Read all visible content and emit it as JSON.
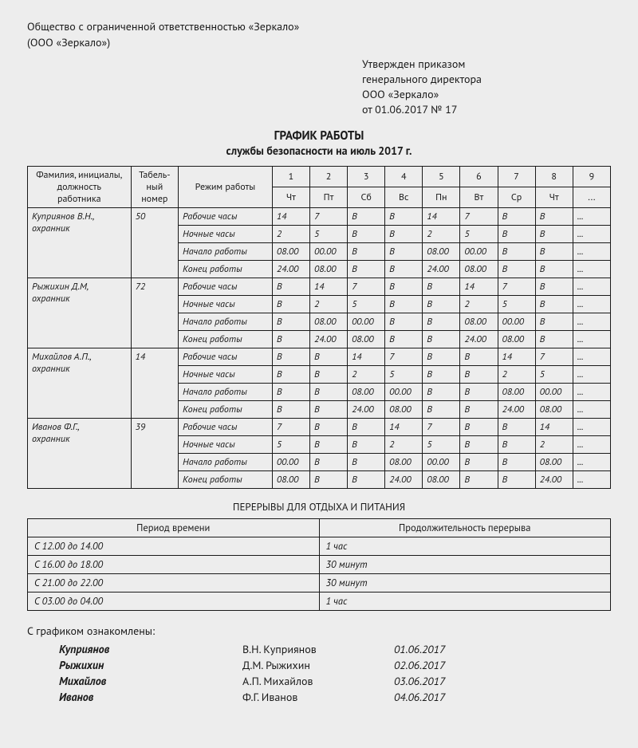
{
  "org": {
    "lines": [
      "Общество с ограниченной ответственностью «Зеркало»",
      "(ООО «Зеркало»)"
    ]
  },
  "approval": {
    "lines": [
      "Утвержден приказом",
      "генерального директора",
      "ООО «Зеркало»",
      "от 01.06.2017 № 17"
    ]
  },
  "title": {
    "main": "ГРАФИК РАБОТЫ",
    "sub": "службы безопасности на июль 2017 г."
  },
  "schedule": {
    "headers": {
      "employee": "Фамилия, инициалы,\nдолжность\nработника",
      "tabnum": "Табель-\nный\nномер",
      "mode": "Режим работы",
      "day_nums": [
        "1",
        "2",
        "3",
        "4",
        "5",
        "6",
        "7",
        "8",
        "9"
      ],
      "day_dow": [
        "Чт",
        "Пт",
        "Сб",
        "Вс",
        "Пн",
        "Вт",
        "Ср",
        "Чт",
        "..."
      ]
    },
    "row_labels": [
      "Рабочие часы",
      "Ночные часы",
      "Начало работы",
      "Конец работы"
    ],
    "employees": [
      {
        "name": "Куприянов В.Н.,\nохранник",
        "tab": "50",
        "rows": [
          [
            "14",
            "7",
            "В",
            "В",
            "14",
            "7",
            "В",
            "В",
            "..."
          ],
          [
            "2",
            "5",
            "В",
            "В",
            "2",
            "5",
            "В",
            "В",
            "..."
          ],
          [
            "08.00",
            "00.00",
            "В",
            "В",
            "08.00",
            "00.00",
            "В",
            "В",
            "..."
          ],
          [
            "24.00",
            "08.00",
            "В",
            "В",
            "24.00",
            "08.00",
            "В",
            "В",
            "..."
          ]
        ]
      },
      {
        "name": "Рыжихин Д.М,\nохранник",
        "tab": "72",
        "rows": [
          [
            "В",
            "14",
            "7",
            "В",
            "В",
            "14",
            "7",
            "В",
            "..."
          ],
          [
            "В",
            "2",
            "5",
            "В",
            "В",
            "2",
            "5",
            "В",
            "..."
          ],
          [
            "В",
            "08.00",
            "00.00",
            "В",
            "В",
            "08.00",
            "00.00",
            "В",
            "..."
          ],
          [
            "В",
            "24.00",
            "08.00",
            "В",
            "В",
            "24.00",
            "08.00",
            "В",
            "..."
          ]
        ]
      },
      {
        "name": "Михайлов А.П.,\nохранник",
        "tab": "14",
        "rows": [
          [
            "В",
            "В",
            "14",
            "7",
            "В",
            "В",
            "14",
            "7",
            "..."
          ],
          [
            "В",
            "В",
            "2",
            "5",
            "В",
            "В",
            "2",
            "5",
            "..."
          ],
          [
            "В",
            "В",
            "08.00",
            "00.00",
            "В",
            "В",
            "08.00",
            "00.00",
            "..."
          ],
          [
            "В",
            "В",
            "24.00",
            "08.00",
            "В",
            "В",
            "24.00",
            "08.00",
            "..."
          ]
        ]
      },
      {
        "name": "Иванов Ф.Г.,\nохранник",
        "tab": "39",
        "rows": [
          [
            "7",
            "В",
            "В",
            "14",
            "7",
            "В",
            "В",
            "14",
            "..."
          ],
          [
            "5",
            "В",
            "В",
            "2",
            "5",
            "В",
            "В",
            "2",
            "..."
          ],
          [
            "00.00",
            "В",
            "В",
            "08.00",
            "00.00",
            "В",
            "В",
            "08.00",
            "..."
          ],
          [
            "08.00",
            "В",
            "В",
            "24.00",
            "08.00",
            "В",
            "В",
            "24.00",
            "..."
          ]
        ]
      }
    ]
  },
  "breaks": {
    "title": "ПЕРЕРЫВЫ ДЛЯ ОТДЫХА И ПИТАНИЯ",
    "headers": [
      "Период времени",
      "Продолжительность перерыва"
    ],
    "rows": [
      [
        "С 12.00 до 14.00",
        "1 час"
      ],
      [
        "С 16.00 до 18.00",
        "30 минут"
      ],
      [
        "С 21.00 до 22.00",
        "30 минут"
      ],
      [
        "С 03.00 до 04.00",
        "1 час"
      ]
    ]
  },
  "ack": {
    "title": "С графиком ознакомлены:",
    "rows": [
      {
        "sig": "Куприянов",
        "full": "В.Н. Куприянов",
        "date": "01.06.2017"
      },
      {
        "sig": "Рыжихин",
        "full": "Д.М. Рыжихин",
        "date": "02.06.2017"
      },
      {
        "sig": "Михайлов",
        "full": "А.П. Михайлов",
        "date": "03.06.2017"
      },
      {
        "sig": "Иванов",
        "full": "Ф.Г. Иванов",
        "date": "04.06.2017"
      }
    ]
  }
}
